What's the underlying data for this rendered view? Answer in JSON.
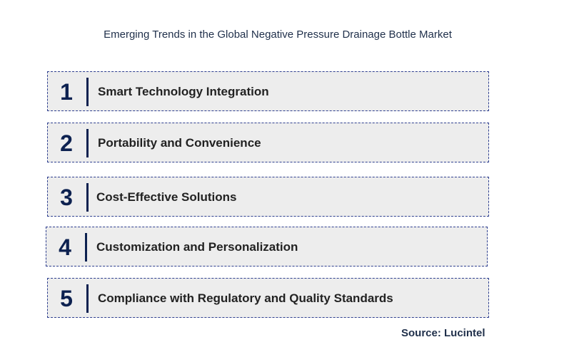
{
  "title": "Emerging Trends in the Global Negative Pressure Drainage Bottle Market",
  "trends": [
    {
      "number": "1",
      "label": "Smart Technology Integration"
    },
    {
      "number": "2",
      "label": "Portability and Convenience"
    },
    {
      "number": "3",
      "label": "Cost-Effective Solutions"
    },
    {
      "number": "4",
      "label": "Customization and Personalization"
    },
    {
      "number": "5",
      "label": "Compliance with Regulatory and Quality Standards"
    }
  ],
  "source": "Source: Lucintel",
  "colors": {
    "box_background": "#ededed",
    "box_border": "#2e3f8f",
    "number": "#0d2150",
    "label": "#222222",
    "title": "#1f2f4a"
  }
}
